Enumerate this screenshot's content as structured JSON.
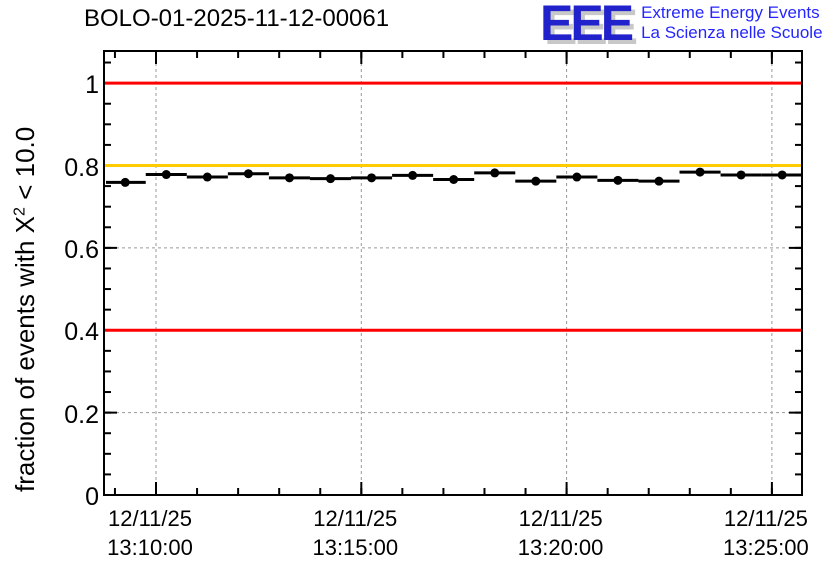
{
  "header": {
    "title": "BOLO-01-2025-11-12-00061",
    "logo": {
      "monogram": "EEE",
      "line1": "Extreme Energy Events",
      "line2": "La Scienza nelle Scuole",
      "monogram_color": "#2222cc",
      "shadow_color": "#c8c8c8",
      "text_color": "#2525ff"
    }
  },
  "chart_data": {
    "type": "scatter",
    "title": "BOLO-01-2025-11-12-00061",
    "xlabel": "",
    "ylabel": "fraction of events with X2 < 10.0",
    "ylabel_parts": {
      "pre": "fraction of events with X",
      "sup": "2",
      "post": " < 10.0"
    },
    "ylim": [
      0,
      1.078
    ],
    "x_range": [
      "13:08:44",
      "13:25:44"
    ],
    "grid": true,
    "grid_color": "#999999",
    "marker": "filled-circle",
    "marker_color": "#000000",
    "bin_halfwidth_s": 30,
    "y_minor_tick_interval": 0.05,
    "x_minor_tick_interval_s": 60,
    "y_ticks": [
      {
        "value": 0,
        "label": "0"
      },
      {
        "value": 0.2,
        "label": "0.2"
      },
      {
        "value": 0.4,
        "label": "0.4"
      },
      {
        "value": 0.6,
        "label": "0.6"
      },
      {
        "value": 0.8,
        "label": "0.8"
      },
      {
        "value": 1,
        "label": "1"
      }
    ],
    "x_ticks": [
      {
        "date": "12/11/25",
        "time": "13:10:00"
      },
      {
        "date": "12/11/25",
        "time": "13:15:00"
      },
      {
        "date": "12/11/25",
        "time": "13:20:00"
      },
      {
        "date": "12/11/25",
        "time": "13:25:00"
      }
    ],
    "reference_lines": [
      {
        "y": 1.0,
        "color": "#ff0000"
      },
      {
        "y": 0.8,
        "color": "#ffcc00"
      },
      {
        "y": 0.4,
        "color": "#ff0000"
      }
    ],
    "series": [
      {
        "name": "fraction of events with X2 < 10.0",
        "color": "#000000",
        "points": [
          {
            "time": "13:09:15",
            "value": 0.759
          },
          {
            "time": "13:10:15",
            "value": 0.778
          },
          {
            "time": "13:11:15",
            "value": 0.772
          },
          {
            "time": "13:12:15",
            "value": 0.78
          },
          {
            "time": "13:13:15",
            "value": 0.77
          },
          {
            "time": "13:14:15",
            "value": 0.768
          },
          {
            "time": "13:15:15",
            "value": 0.77
          },
          {
            "time": "13:16:15",
            "value": 0.776
          },
          {
            "time": "13:17:15",
            "value": 0.766
          },
          {
            "time": "13:18:15",
            "value": 0.782
          },
          {
            "time": "13:19:15",
            "value": 0.762
          },
          {
            "time": "13:20:15",
            "value": 0.772
          },
          {
            "time": "13:21:15",
            "value": 0.764
          },
          {
            "time": "13:22:15",
            "value": 0.762
          },
          {
            "time": "13:23:15",
            "value": 0.784
          },
          {
            "time": "13:24:15",
            "value": 0.777
          },
          {
            "time": "13:25:15",
            "value": 0.777
          }
        ]
      }
    ]
  }
}
